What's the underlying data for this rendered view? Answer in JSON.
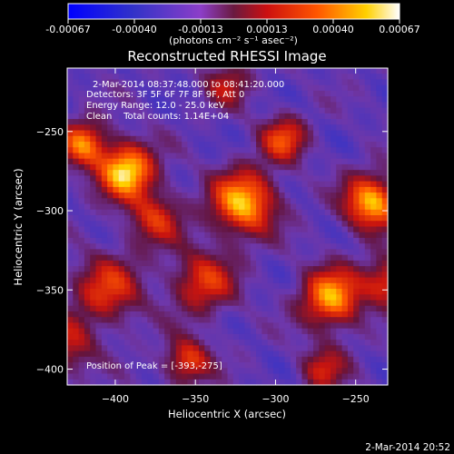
{
  "chart_data": {
    "type": "heatmap",
    "title": "Reconstructed RHESSI Image",
    "xlabel": "Heliocentric X (arcsec)",
    "ylabel": "Heliocentric Y (arcsec)",
    "xlim": [
      -430,
      -230
    ],
    "ylim": [
      -410,
      -210
    ],
    "xticks": [
      -400,
      -350,
      -300,
      -250
    ],
    "yticks": [
      -250,
      -300,
      -350,
      -400
    ],
    "colorbar": {
      "ticks": [
        "-0.00067",
        "-0.00040",
        "-0.00013",
        "0.00013",
        "0.00040",
        "0.00067"
      ],
      "unit_label": "(photons cm⁻² s⁻¹ asec⁻²)",
      "min": -0.00067,
      "max": 0.00067
    },
    "annotations": [
      "2-Mar-2014 08:37:48.000 to 08:41:20.000",
      "Detectors: 3F 5F 6F 7F 8F 9F, Att 0",
      "Energy Range: 12.0 - 25.0 keV",
      "Clean    Total counts: 1.14E+04"
    ],
    "peak_label": "Position of Peak = [-393,-275]",
    "peak_position": [
      -393,
      -275
    ],
    "sources": [
      {
        "x": -393,
        "y": -275,
        "amp": 1.0,
        "w": 12
      },
      {
        "x": -420,
        "y": -258,
        "amp": 0.75,
        "w": 10
      },
      {
        "x": -320,
        "y": -295,
        "amp": 0.9,
        "w": 14
      },
      {
        "x": -240,
        "y": -295,
        "amp": 0.9,
        "w": 12
      },
      {
        "x": -295,
        "y": -255,
        "amp": 0.6,
        "w": 10
      },
      {
        "x": -265,
        "y": -355,
        "amp": 0.85,
        "w": 13
      },
      {
        "x": -345,
        "y": -345,
        "amp": 0.55,
        "w": 14
      },
      {
        "x": -405,
        "y": -350,
        "amp": 0.55,
        "w": 15
      },
      {
        "x": -355,
        "y": -395,
        "amp": 0.6,
        "w": 10
      },
      {
        "x": -230,
        "y": -345,
        "amp": 0.6,
        "w": 10
      },
      {
        "x": -270,
        "y": -400,
        "amp": 0.45,
        "w": 10
      },
      {
        "x": -375,
        "y": -305,
        "amp": 0.5,
        "w": 12
      },
      {
        "x": -430,
        "y": -385,
        "amp": 0.45,
        "w": 12
      },
      {
        "x": -330,
        "y": -220,
        "amp": 0.4,
        "w": 10
      }
    ]
  },
  "footer": {
    "timestamp": "2-Mar-2014 20:52"
  }
}
